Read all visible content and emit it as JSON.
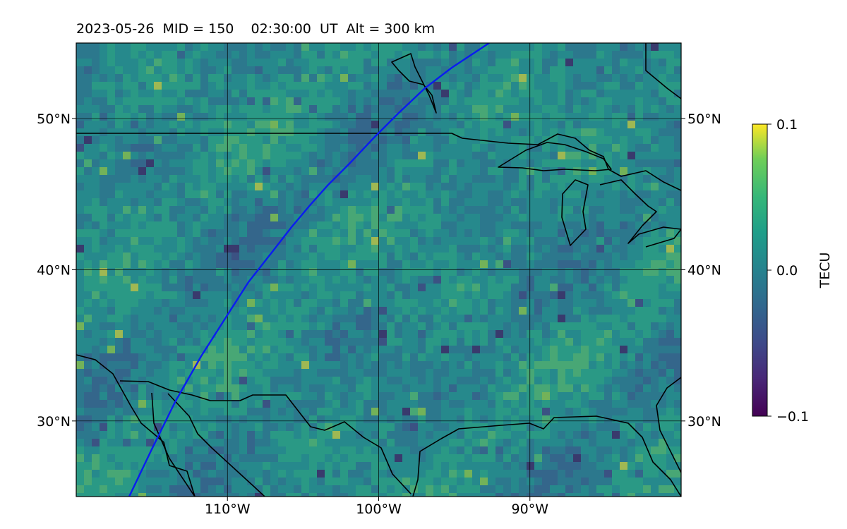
{
  "title": "2023-05-26  MID = 150    02:30:00  UT  Alt = 300 km",
  "map": {
    "lon_range": [
      -120,
      -80
    ],
    "lat_range": [
      25,
      55
    ],
    "lon_ticks": [
      {
        "value": -110,
        "label": "110°W"
      },
      {
        "value": -100,
        "label": "100°W"
      },
      {
        "value": -90,
        "label": "90°W"
      }
    ],
    "lat_ticks": [
      {
        "value": 50,
        "label": "50°N"
      },
      {
        "value": 40,
        "label": "40°N"
      },
      {
        "value": 30,
        "label": "30°N"
      }
    ],
    "colors": {
      "track": "#0a1cf0",
      "coast": "#000000",
      "grid": "#000000"
    }
  },
  "colorbar": {
    "label": "TECU",
    "colormap": "viridis",
    "range": [
      -0.1,
      0.1
    ],
    "ticks": [
      {
        "value": 0.1,
        "label": "0.1"
      },
      {
        "value": 0.0,
        "label": "0.0"
      },
      {
        "value": -0.1,
        "label": "−0.1"
      }
    ]
  }
}
